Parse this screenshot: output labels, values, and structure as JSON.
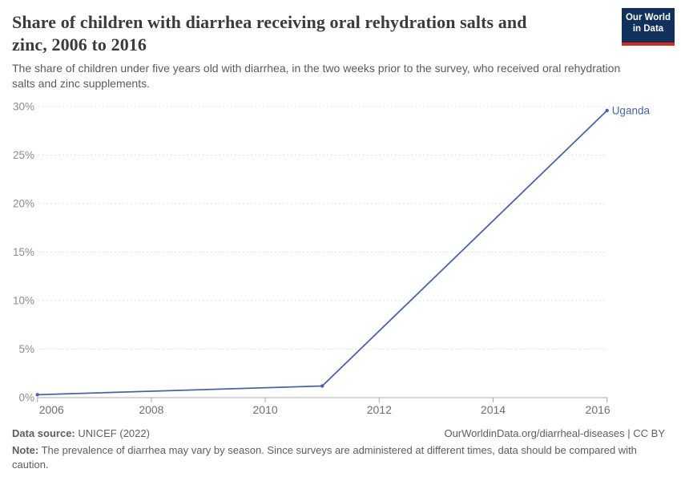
{
  "header": {
    "title": "Share of children with diarrhea receiving oral rehydration salts and\nzinc, 2006 to 2016",
    "subtitle": "The share of children under five years old with diarrhea, in the two weeks prior to the survey, who received oral rehydration\nsalts and zinc supplements.",
    "logo": {
      "line1": "Our World",
      "line2": "in Data",
      "bg_color": "#12305c",
      "accent_color": "#d42b20"
    }
  },
  "chart_data": {
    "type": "line",
    "title": "Share of children with diarrhea receiving oral rehydration salts and zinc, 2006 to 2016",
    "xlabel": "",
    "ylabel": "",
    "xlim": [
      2006,
      2016
    ],
    "ylim": [
      0,
      30
    ],
    "grid": "horizontal-dashed",
    "x_ticks": [
      2006,
      2008,
      2010,
      2012,
      2014,
      2016
    ],
    "y_ticks": [
      0,
      5,
      10,
      15,
      20,
      25,
      30
    ],
    "y_tick_suffix": "%",
    "series": [
      {
        "name": "Uganda",
        "color": "#4a64a0",
        "points": [
          {
            "year": 2006,
            "value": 0.3
          },
          {
            "year": 2011,
            "value": 1.2
          },
          {
            "year": 2016,
            "value": 29.6
          }
        ]
      }
    ],
    "colors": {
      "grid": "#e3e3e3",
      "axis": "#a8a8a8",
      "x_labels": "#6f6f6f",
      "y_labels": "#8c8c8c"
    }
  },
  "footer": {
    "source_label": "Data source:",
    "source_value": " UNICEF (2022)",
    "link": "OurWorldinData.org/diarrheal-diseases | CC BY",
    "note_label": "Note:",
    "note_value": " The prevalence of diarrhea may vary by season. Since surveys are administered at different times, data should be compared with\ncaution."
  }
}
